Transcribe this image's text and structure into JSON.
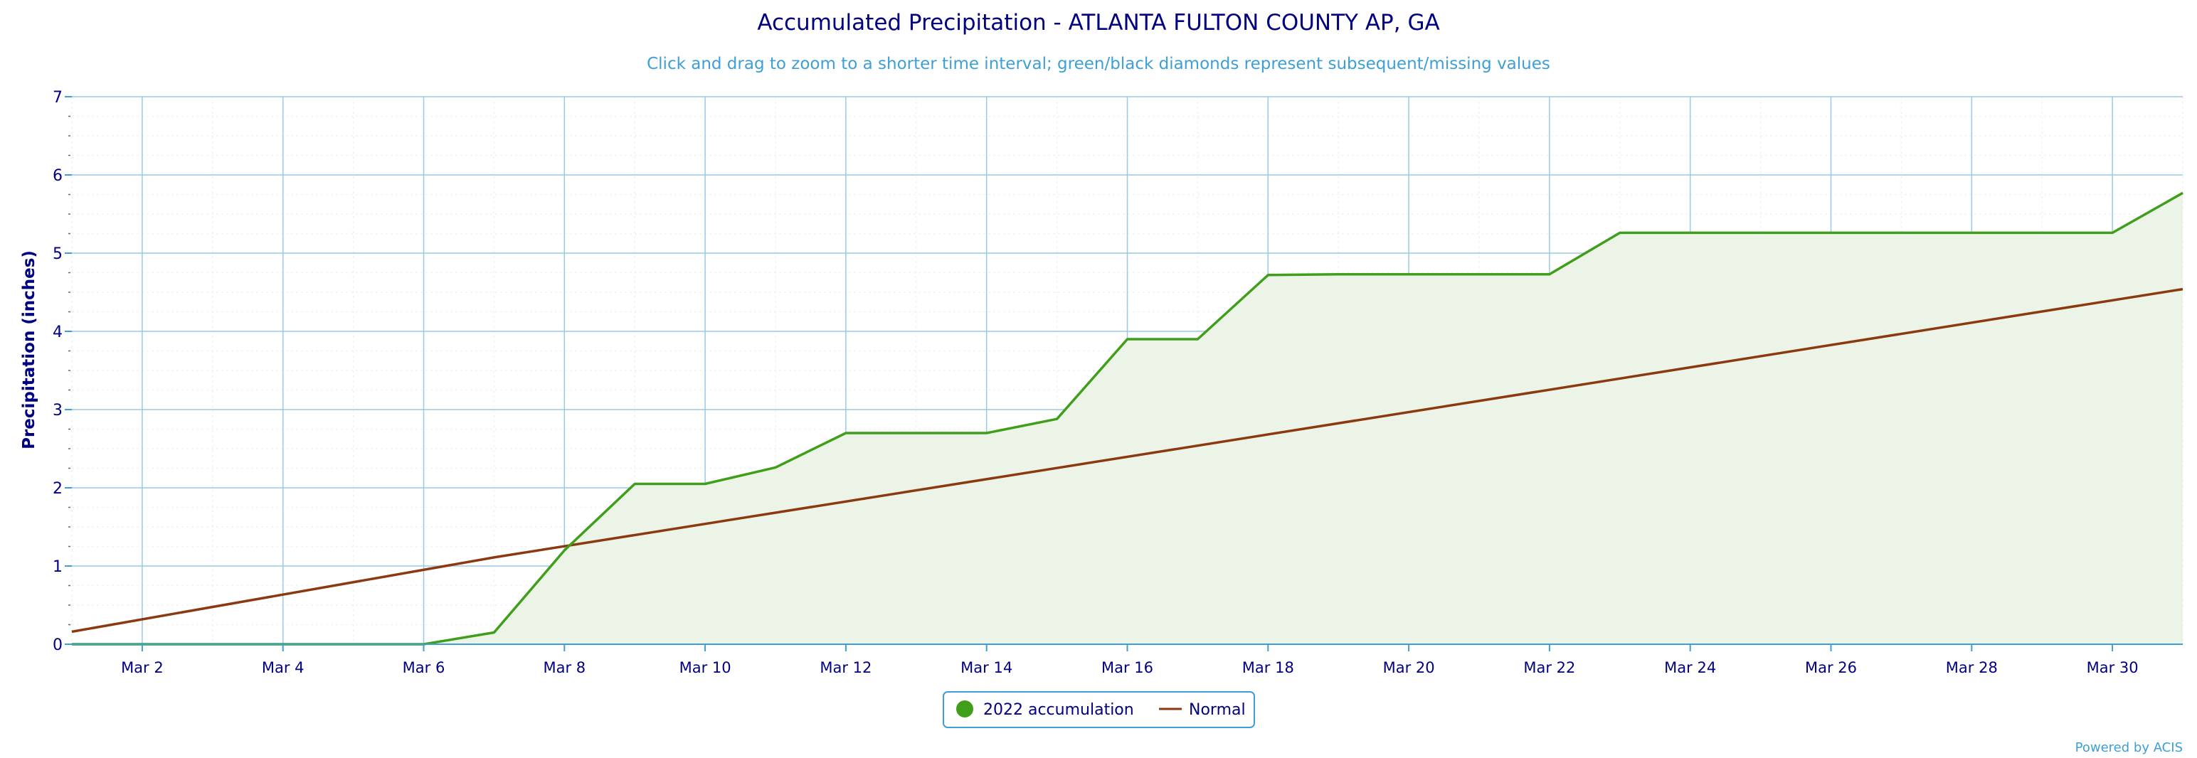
{
  "chart_data": {
    "type": "line",
    "title": "Accumulated Precipitation - ATLANTA FULTON COUNTY AP, GA",
    "subtitle": "Click and drag to zoom to a shorter time interval; green/black diamonds represent subsequent/missing values",
    "ylabel": "Precipitation (inches)",
    "xlabel": "",
    "ylim": [
      0,
      7
    ],
    "yticks": [
      "0",
      "1",
      "2",
      "3",
      "4",
      "5",
      "6",
      "7"
    ],
    "x_day_range": [
      1,
      31
    ],
    "x_ticks": [
      {
        "day": 2,
        "label": "Mar 2"
      },
      {
        "day": 4,
        "label": "Mar 4"
      },
      {
        "day": 6,
        "label": "Mar 6"
      },
      {
        "day": 8,
        "label": "Mar 8"
      },
      {
        "day": 10,
        "label": "Mar 10"
      },
      {
        "day": 12,
        "label": "Mar 12"
      },
      {
        "day": 14,
        "label": "Mar 14"
      },
      {
        "day": 16,
        "label": "Mar 16"
      },
      {
        "day": 18,
        "label": "Mar 18"
      },
      {
        "day": 20,
        "label": "Mar 20"
      },
      {
        "day": 22,
        "label": "Mar 22"
      },
      {
        "day": 24,
        "label": "Mar 24"
      },
      {
        "day": 26,
        "label": "Mar 26"
      },
      {
        "day": 28,
        "label": "Mar 28"
      },
      {
        "day": 30,
        "label": "Mar 30"
      }
    ],
    "grid": true,
    "legend_position": "bottom-center",
    "series": [
      {
        "name": "2022 accumulation",
        "color": "#3f9e1a",
        "fill": "#ebf4e6",
        "marker": "circle",
        "points": [
          [
            1,
            0.0
          ],
          [
            2,
            0.0
          ],
          [
            3,
            0.0
          ],
          [
            4,
            0.0
          ],
          [
            5,
            0.0
          ],
          [
            6,
            0.0
          ],
          [
            7,
            0.15
          ],
          [
            8,
            1.2
          ],
          [
            9,
            2.05
          ],
          [
            10,
            2.05
          ],
          [
            11,
            2.26
          ],
          [
            12,
            2.7
          ],
          [
            13,
            2.7
          ],
          [
            14,
            2.7
          ],
          [
            15,
            2.88
          ],
          [
            16,
            3.9
          ],
          [
            17,
            3.9
          ],
          [
            18,
            4.72
          ],
          [
            19,
            4.73
          ],
          [
            20,
            4.73
          ],
          [
            21,
            4.73
          ],
          [
            22,
            4.73
          ],
          [
            23,
            5.26
          ],
          [
            24,
            5.26
          ],
          [
            25,
            5.26
          ],
          [
            26,
            5.26
          ],
          [
            27,
            5.26
          ],
          [
            28,
            5.26
          ],
          [
            29,
            5.26
          ],
          [
            30,
            5.26
          ],
          [
            31,
            5.77
          ]
        ]
      },
      {
        "name": "Normal",
        "color": "#8b3a0f",
        "marker": "line",
        "points": [
          [
            1,
            0.16
          ],
          [
            7,
            1.11
          ],
          [
            31,
            4.54
          ]
        ]
      }
    ]
  },
  "credit": "Powered by ACIS"
}
